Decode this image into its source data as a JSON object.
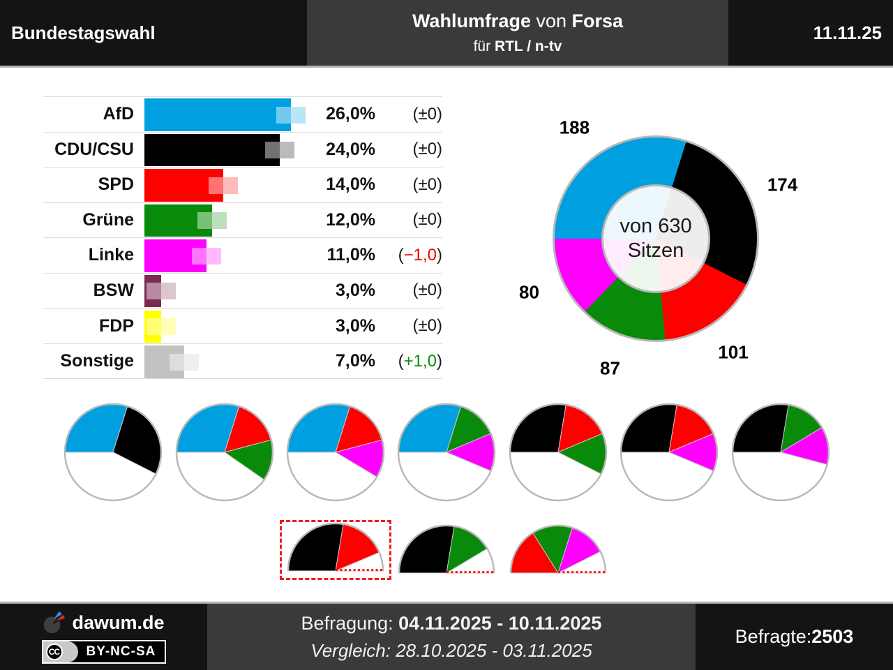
{
  "header": {
    "left_title": "Bundestagswahl",
    "center_title_bold1": "Wahlumfrage",
    "center_title_mid": " von ",
    "center_title_bold2": "Forsa",
    "center_sub_regular": "für ",
    "center_sub_bold": "RTL / n-tv",
    "date": "11.11.25"
  },
  "party_colors": {
    "AfD": "#009fe0",
    "CDU/CSU": "#000000",
    "SPD": "#ff0000",
    "Grüne": "#0a8a0a",
    "Linke": "#ff00ff",
    "BSW": "#7c2b50",
    "FDP": "#ffff00",
    "Sonstige": "#c2c2c2"
  },
  "chart_data": [
    {
      "type": "bar",
      "title": "Wahlumfrage Bundestagswahl (Forsa für RTL / n-tv)",
      "categories": [
        "AfD",
        "CDU/CSU",
        "SPD",
        "Grüne",
        "Linke",
        "BSW",
        "FDP",
        "Sonstige"
      ],
      "values": [
        26.0,
        24.0,
        14.0,
        12.0,
        11.0,
        3.0,
        3.0,
        7.0
      ],
      "value_labels": [
        "26,0%",
        "24,0%",
        "14,0%",
        "12,0%",
        "11,0%",
        "3,0%",
        "3,0%",
        "7,0%"
      ],
      "changes": [
        "±0",
        "±0",
        "±0",
        "±0",
        "−1,0",
        "±0",
        "±0",
        "+1,0"
      ],
      "change_colors": [
        "#1a1a1a",
        "#1a1a1a",
        "#1a1a1a",
        "#1a1a1a",
        "#ee0000",
        "#1a1a1a",
        "#1a1a1a",
        "#0a8a0a"
      ],
      "xlim": [
        0,
        26
      ],
      "unit": "%"
    },
    {
      "type": "pie",
      "subtype": "donut",
      "center_label_line1": "von 630",
      "center_label_line2": "Sitzen",
      "total": 630,
      "categories": [
        "AfD",
        "CDU/CSU",
        "SPD",
        "Grüne",
        "Linke"
      ],
      "values": [
        188,
        174,
        101,
        87,
        80
      ],
      "labels": [
        "188",
        "174",
        "101",
        "87",
        "80"
      ],
      "start_angle_deg_compass": 270,
      "direction": "clockwise"
    },
    {
      "type": "pie",
      "subtype": "majority-coalition-pies",
      "total": 630,
      "pies": [
        {
          "parties": [
            "AfD",
            "CDU/CSU"
          ],
          "seats": [
            188,
            174
          ]
        },
        {
          "parties": [
            "AfD",
            "SPD",
            "Grüne"
          ],
          "seats": [
            188,
            101,
            87
          ]
        },
        {
          "parties": [
            "AfD",
            "SPD",
            "Linke"
          ],
          "seats": [
            188,
            101,
            80
          ]
        },
        {
          "parties": [
            "AfD",
            "Grüne",
            "Linke"
          ],
          "seats": [
            188,
            87,
            80
          ]
        },
        {
          "parties": [
            "CDU/CSU",
            "SPD",
            "Grüne"
          ],
          "seats": [
            174,
            101,
            87
          ]
        },
        {
          "parties": [
            "CDU/CSU",
            "SPD",
            "Linke"
          ],
          "seats": [
            174,
            101,
            80
          ]
        },
        {
          "parties": [
            "CDU/CSU",
            "Grüne",
            "Linke"
          ],
          "seats": [
            174,
            87,
            80
          ]
        }
      ]
    },
    {
      "type": "pie",
      "subtype": "minority-half-pies",
      "half_total": 315,
      "pies": [
        {
          "parties": [
            "CDU/CSU",
            "SPD"
          ],
          "seats": [
            174,
            101
          ],
          "highlighted": true
        },
        {
          "parties": [
            "CDU/CSU",
            "Grüne"
          ],
          "seats": [
            174,
            87
          ],
          "highlighted": false
        },
        {
          "parties": [
            "SPD",
            "Grüne",
            "Linke"
          ],
          "seats": [
            101,
            87,
            80
          ],
          "highlighted": false
        }
      ]
    }
  ],
  "footer": {
    "brand": "dawum.de",
    "cc_icon_text": "CC",
    "license": "BY-NC-SA",
    "survey_label": "Befragung: ",
    "survey_dates": "04.11.2025 - 10.11.2025",
    "comparison_line": "Vergleich: 28.10.2025 - 03.11.2025",
    "respondents_label": "Befragte: ",
    "respondents_value": "2503"
  }
}
